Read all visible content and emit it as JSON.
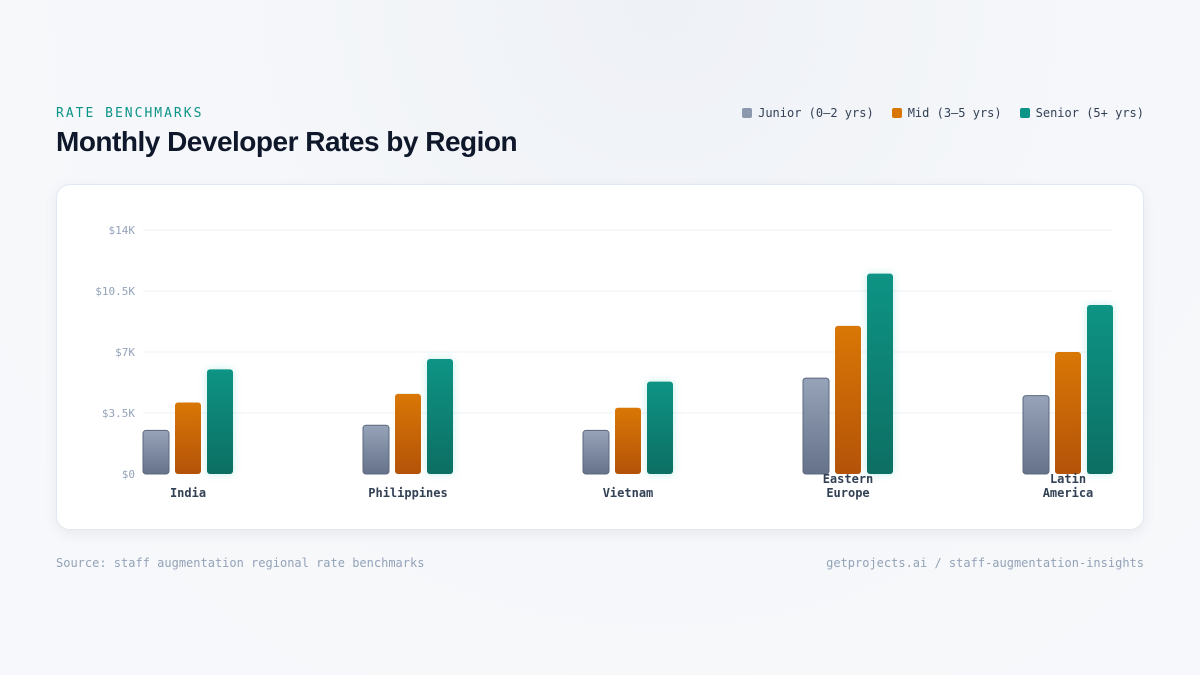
{
  "header": {
    "eyebrow": "RATE BENCHMARKS",
    "title": "Monthly Developer Rates by Region"
  },
  "legend": [
    {
      "label": "Junior (0–2 yrs)",
      "color": "#8c98ae"
    },
    {
      "label": "Mid (3–5 yrs)",
      "color": "#d97706"
    },
    {
      "label": "Senior (5+ yrs)",
      "color": "#0d9488"
    }
  ],
  "footer": {
    "source": "Source: staff augmentation regional rate benchmarks",
    "site": "getprojects.ai / staff-augmentation-insights"
  },
  "chart_data": {
    "type": "bar",
    "title": "Monthly Developer Rates by Region",
    "xlabel": "",
    "ylabel": "",
    "ylim": [
      0,
      14000
    ],
    "yticks": [
      0,
      3500,
      7000,
      10500,
      14000
    ],
    "ytick_labels": [
      "$0",
      "$3.5K",
      "$7K",
      "$10.5K",
      "$14K"
    ],
    "grid": true,
    "legend_position": "top-right",
    "categories": [
      [
        "India"
      ],
      [
        "Philippines"
      ],
      [
        "Vietnam"
      ],
      [
        "Eastern",
        "Europe"
      ],
      [
        "Latin",
        "America"
      ]
    ],
    "series": [
      {
        "name": "Junior (0–2 yrs)",
        "color": "#8c98ae",
        "values": [
          2500,
          2800,
          2500,
          5500,
          4500
        ]
      },
      {
        "name": "Mid (3–5 yrs)",
        "color": "#d97706",
        "values": [
          4100,
          4600,
          3800,
          8500,
          7000
        ]
      },
      {
        "name": "Senior (5+ yrs)",
        "color": "#0d9488",
        "values": [
          6000,
          6600,
          5300,
          11500,
          9700
        ]
      }
    ]
  }
}
